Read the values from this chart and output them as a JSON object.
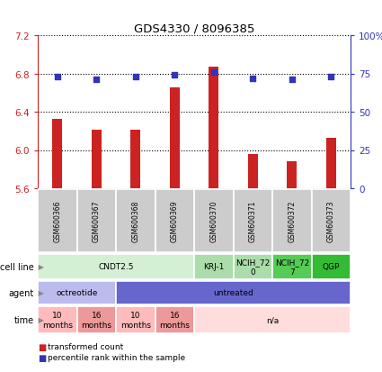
{
  "title": "GDS4330 / 8096385",
  "samples": [
    "GSM600366",
    "GSM600367",
    "GSM600368",
    "GSM600369",
    "GSM600370",
    "GSM600371",
    "GSM600372",
    "GSM600373"
  ],
  "bar_values": [
    6.32,
    6.21,
    6.21,
    6.65,
    6.87,
    5.96,
    5.88,
    6.13
  ],
  "dot_values": [
    73,
    71,
    73,
    74,
    76,
    72,
    71,
    73
  ],
  "ylim_left": [
    5.6,
    7.2
  ],
  "ylim_right": [
    0,
    100
  ],
  "yticks_left": [
    5.6,
    6.0,
    6.4,
    6.8,
    7.2
  ],
  "yticks_right": [
    0,
    25,
    50,
    75,
    100
  ],
  "bar_color": "#cc2222",
  "dot_color": "#3333bb",
  "bar_base": 5.6,
  "cell_line_spans": [
    {
      "label": "CNDT2.5",
      "start": 0,
      "end": 4,
      "color": "#d4f0d4"
    },
    {
      "label": "KRJ-1",
      "start": 4,
      "end": 5,
      "color": "#aaddaa"
    },
    {
      "label": "NCIH_72\n0",
      "start": 5,
      "end": 6,
      "color": "#aaddaa"
    },
    {
      "label": "NCIH_72\n7",
      "start": 6,
      "end": 7,
      "color": "#55cc55"
    },
    {
      "label": "QGP",
      "start": 7,
      "end": 8,
      "color": "#33bb33"
    }
  ],
  "agent_spans": [
    {
      "label": "octreotide",
      "start": 0,
      "end": 2,
      "color": "#bbbbee"
    },
    {
      "label": "untreated",
      "start": 2,
      "end": 8,
      "color": "#6666cc"
    }
  ],
  "time_spans": [
    {
      "label": "10\nmonths",
      "start": 0,
      "end": 1,
      "color": "#ffbbbb"
    },
    {
      "label": "16\nmonths",
      "start": 1,
      "end": 2,
      "color": "#ee9999"
    },
    {
      "label": "10\nmonths",
      "start": 2,
      "end": 3,
      "color": "#ffbbbb"
    },
    {
      "label": "16\nmonths",
      "start": 3,
      "end": 4,
      "color": "#ee9999"
    },
    {
      "label": "n/a",
      "start": 4,
      "end": 8,
      "color": "#ffdddd"
    }
  ],
  "row_labels": [
    "cell line",
    "agent",
    "time"
  ],
  "legend_bar_label": "transformed count",
  "legend_dot_label": "percentile rank within the sample",
  "axis_color_left": "#cc2222",
  "axis_color_right": "#3333bb",
  "sample_box_color": "#cccccc",
  "sample_box_edge": "#999999"
}
